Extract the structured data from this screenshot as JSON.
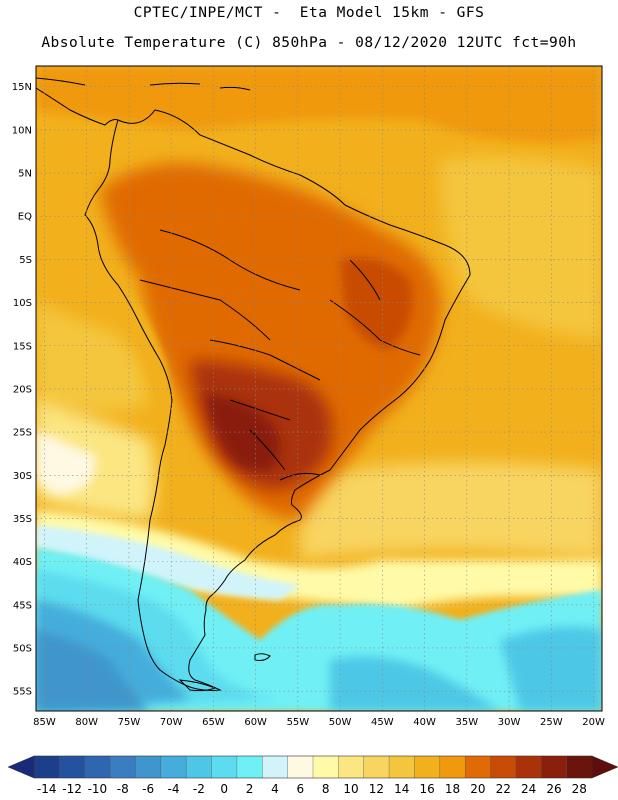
{
  "header": {
    "title_line1": "CPTEC/INPE/MCT -  Eta Model 15km - GFS",
    "title_line2": "Absolute Temperature (C) 850hPa - 08/12/2020 12UTC fct=90h"
  },
  "map": {
    "lat_labels": [
      "15N",
      "10N",
      "5N",
      "EQ",
      "5S",
      "10S",
      "15S",
      "20S",
      "25S",
      "30S",
      "35S",
      "40S",
      "45S",
      "50S",
      "55S"
    ],
    "lon_labels": [
      "85W",
      "80W",
      "75W",
      "70W",
      "65W",
      "60W",
      "55W",
      "50W",
      "45W",
      "40W",
      "35W",
      "30W",
      "25W",
      "20W"
    ]
  },
  "colorbar": {
    "labels": [
      "-14",
      "-12",
      "-10",
      "-8",
      "-6",
      "-4",
      "-2",
      "0",
      "2",
      "4",
      "6",
      "8",
      "10",
      "12",
      "14",
      "16",
      "18",
      "20",
      "22",
      "24",
      "26",
      "28"
    ],
    "colors": [
      "#1c3f8c",
      "#25529f",
      "#2e66b0",
      "#3a7dc0",
      "#3f96cc",
      "#44addb",
      "#4ec7e6",
      "#5cdcee",
      "#6ff0f5",
      "#d0f4fa",
      "#fff8e2",
      "#fffaa8",
      "#fbe682",
      "#f8d460",
      "#f4c63d",
      "#f2b01c",
      "#f0990c",
      "#e06a05",
      "#c84c06",
      "#aa3209",
      "#8a1f0c",
      "#6b140b"
    ],
    "low_end_color": "#1a2a7a",
    "high_end_color": "#5e0c0c"
  }
}
